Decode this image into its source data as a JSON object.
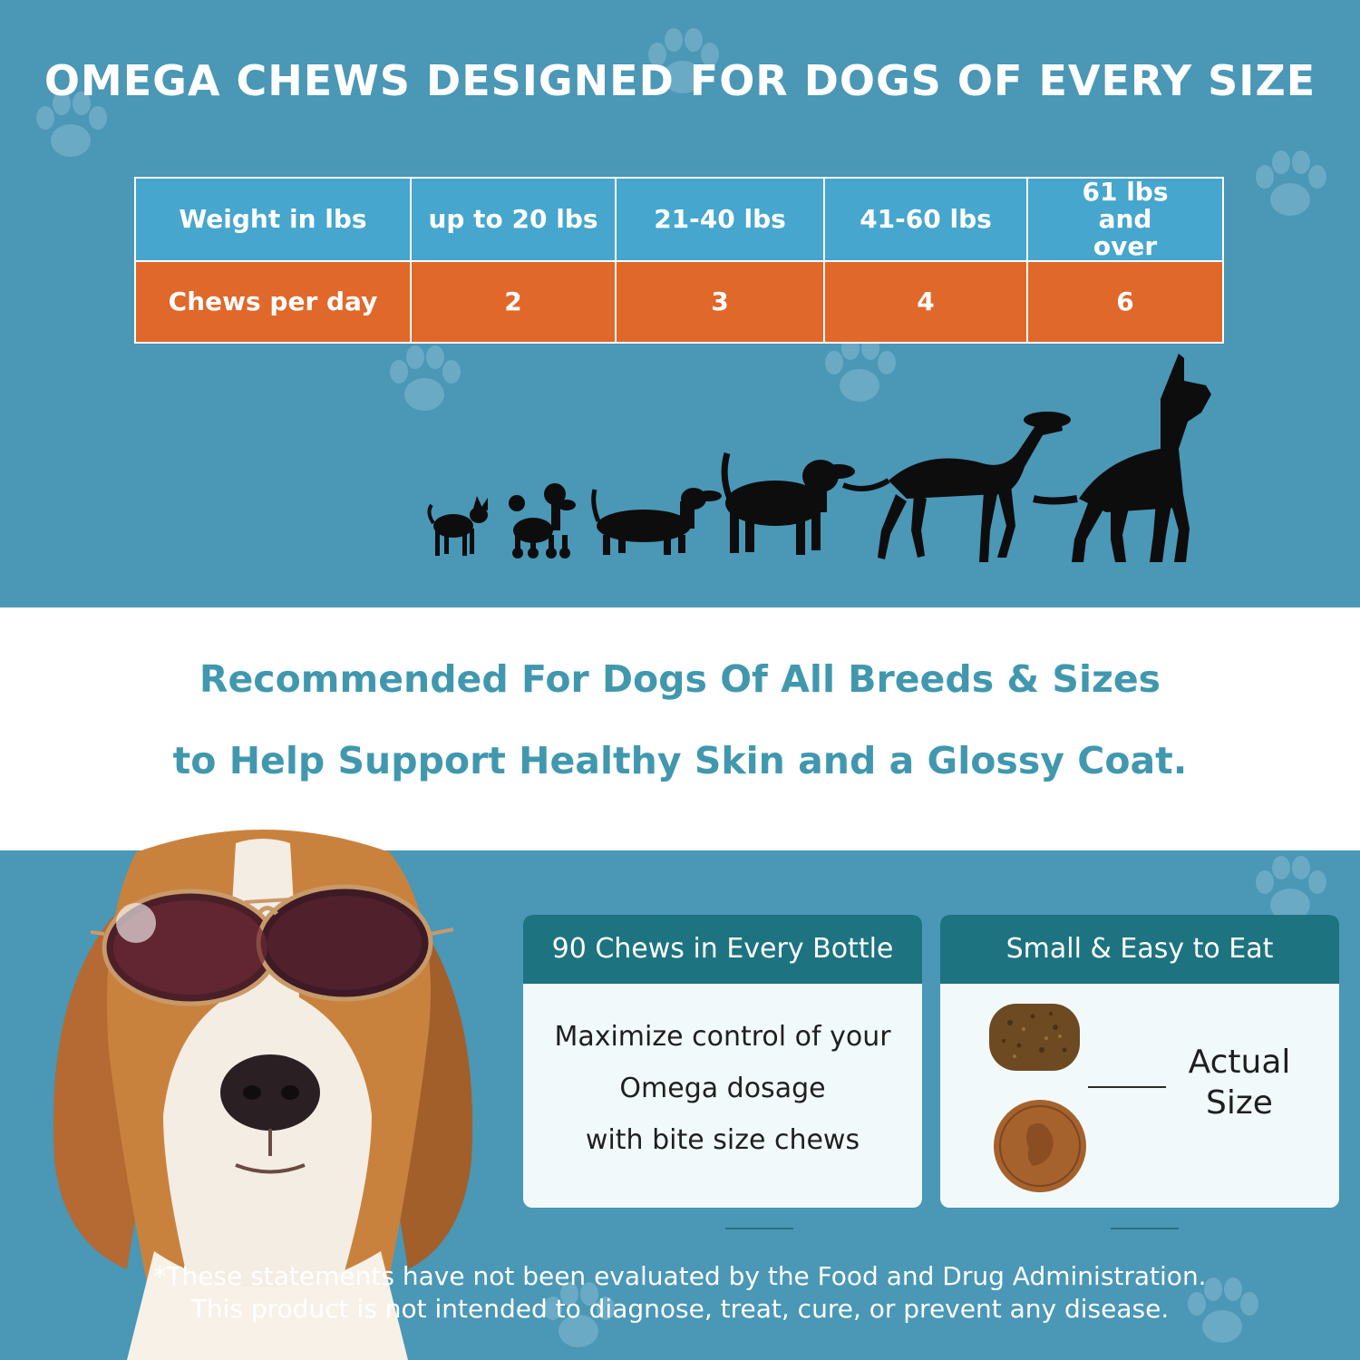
{
  "header": {
    "title": "OMEGA CHEWS DESIGNED FOR DOGS OF EVERY SIZE"
  },
  "dosage_table": {
    "row_weight": {
      "label": "Weight in lbs",
      "cells": [
        "up to 20 lbs",
        "21-40 lbs",
        "41-60 lbs",
        "61 lbs and over"
      ]
    },
    "row_chews": {
      "label": "Chews per day",
      "cells": [
        "2",
        "3",
        "4",
        "6"
      ]
    }
  },
  "tagline": {
    "line1": "Recommended For Dogs Of All Breeds & Sizes",
    "line2": "to Help Support Healthy Skin and a Glossy Coat."
  },
  "cards": {
    "bottle": {
      "heading": "90 Chews in Every Bottle",
      "lines": [
        "Maximize control of your",
        "Omega dosage",
        "with bite size chews"
      ]
    },
    "size": {
      "heading": "Small & Easy to Eat",
      "caption_line1": "Actual",
      "caption_line2": "Size"
    }
  },
  "disclaimer": {
    "line1": "*These statements have not been evaluated by the Food and Drug Administration.",
    "line2": "This product is not intended to diagnose, treat, cure, or prevent any disease."
  },
  "colors": {
    "background_blue": "#4a97b6",
    "table_header_blue": "#46a6cd",
    "table_accent_orange": "#e0682a",
    "tagline_teal": "#4198ae",
    "card_header_teal": "#1e7380"
  },
  "icons": [
    "paw-print-icon",
    "dog-silhouette-icon",
    "chew-treat-icon",
    "penny-coin-icon",
    "sunglasses-beagle-photo"
  ]
}
